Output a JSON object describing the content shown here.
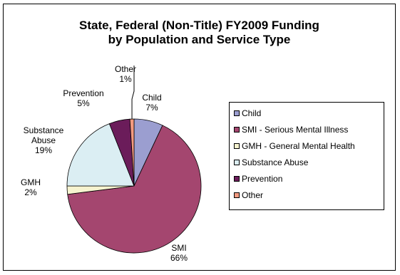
{
  "chart_data": {
    "type": "pie",
    "title_lines": [
      "State, Federal (Non-Title) FY2009 Funding",
      "by Population and Service Type"
    ],
    "slices": [
      {
        "name": "Child",
        "value": 7,
        "label_lines": [
          "Child",
          "7%"
        ],
        "color": "#9b9ed0"
      },
      {
        "name": "SMI - Serious Mental Illness",
        "value": 66,
        "label_lines": [
          "SMI",
          "66%"
        ],
        "color": "#a4466f"
      },
      {
        "name": "GMH - General Mental Health",
        "value": 2,
        "label_lines": [
          "GMH",
          "2%"
        ],
        "color": "#f6f3cf"
      },
      {
        "name": "Substance Abuse",
        "value": 19,
        "label_lines": [
          "Substance",
          "Abuse",
          "19%"
        ],
        "color": "#dbeef3"
      },
      {
        "name": "Prevention",
        "value": 5,
        "label_lines": [
          "Prevention",
          "5%"
        ],
        "color": "#6b1c5a"
      },
      {
        "name": "Other",
        "value": 1,
        "label_lines": [
          "Other",
          "1%"
        ],
        "color": "#f39a80"
      }
    ],
    "legend_position": "right"
  }
}
